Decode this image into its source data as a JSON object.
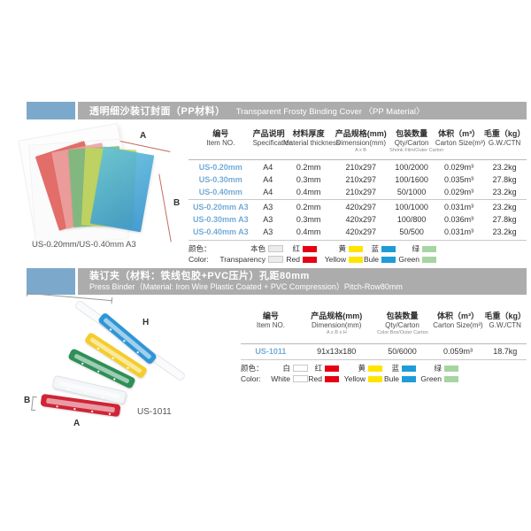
{
  "theme": {
    "tab_blue": "#7CA9CB",
    "bar_gray": "#ACACAC",
    "item_blue": "#74ABD8"
  },
  "section1": {
    "header": {
      "title_cn": "透明细沙装订封面（PP材料）",
      "title_en": "Transparent Frosty Binding Cover 〈PP Material〉"
    },
    "illustration": {
      "label_a": "A",
      "label_b": "B",
      "caption": "US-0.20mm/US-0.40mm A3"
    },
    "table": {
      "headers": [
        {
          "cn": "编号",
          "en": "Item NO.",
          "sub": ""
        },
        {
          "cn": "产品说明",
          "en": "Specification",
          "sub": ""
        },
        {
          "cn": "材料厚度",
          "en": "Material thickness",
          "sub": ""
        },
        {
          "cn": "产品规格(mm)",
          "en": "Dimension(mm)",
          "sub": "A x B"
        },
        {
          "cn": "包装数量",
          "en": "Qty/Carton",
          "sub": "Shrink Film/Outer Carton"
        },
        {
          "cn": "体积（m³）",
          "en": "Carton Size(m³)",
          "sub": ""
        },
        {
          "cn": "毛重（kg）",
          "en": "G.W./CTN",
          "sub": ""
        }
      ],
      "rows": [
        [
          "US-0.20mm",
          "A4",
          "0.2mm",
          "210x297",
          "100/2000",
          "0.029m³",
          "23.2kg"
        ],
        [
          "US-0.30mm",
          "A4",
          "0.3mm",
          "210x297",
          "100/1600",
          "0.035m³",
          "27.8kg"
        ],
        [
          "US-0.40mm",
          "A4",
          "0.4mm",
          "210x297",
          "50/1000",
          "0.029m³",
          "23.2kg"
        ],
        [
          "US-0.20mm A3",
          "A3",
          "0.2mm",
          "420x297",
          "100/1000",
          "0.031m³",
          "23.2kg"
        ],
        [
          "US-0.30mm A3",
          "A3",
          "0.3mm",
          "420x297",
          "100/800",
          "0.036m³",
          "27.8kg"
        ],
        [
          "US-0.40mm A3",
          "A3",
          "0.4mm",
          "420x297",
          "50/500",
          "0.031m³",
          "23.2kg"
        ]
      ]
    },
    "colors": {
      "label_cn": "颜色：",
      "label_en": "Color:",
      "items": [
        {
          "cn": "本色",
          "en": "Transparency",
          "hex": "#EBEBEB"
        },
        {
          "cn": "红",
          "en": "Red",
          "hex": "#E60012"
        },
        {
          "cn": "黄",
          "en": "Yellow",
          "hex": "#FFE400"
        },
        {
          "cn": "蓝",
          "en": "Bule",
          "hex": "#1E9CD7"
        },
        {
          "cn": "绿",
          "en": "Green",
          "hex": "#A6D5A2"
        }
      ]
    }
  },
  "section2": {
    "header": {
      "title_cn": "装订夹（材料：铁线包胶+PVC压片）孔距80mm",
      "title_en": "Press Binder（Material: Iron Wire Plastic Coated + PVC Compression）Pitch-Row80mm"
    },
    "illustration": {
      "label_a": "A",
      "label_b": "B",
      "label_h": "H",
      "caption": "US-1011"
    },
    "table": {
      "headers": [
        {
          "cn": "编号",
          "en": "Item NO.",
          "sub": ""
        },
        {
          "cn": "产品规格(mm)",
          "en": "Dimension(mm)",
          "sub": "A x B x H"
        },
        {
          "cn": "包装数量",
          "en": "Qty/Carton",
          "sub": "Color Box/Outer Carton"
        },
        {
          "cn": "体积（m³）",
          "en": "Carton Size(m³)",
          "sub": ""
        },
        {
          "cn": "毛重（kg）",
          "en": "G.W./CTN",
          "sub": ""
        }
      ],
      "rows": [
        [
          "US-1011",
          "91x13x180",
          "50/6000",
          "0.059m³",
          "18.7kg"
        ]
      ]
    },
    "colors": {
      "label_cn": "颜色：",
      "label_en": "Color:",
      "items": [
        {
          "cn": "白",
          "en": "White",
          "hex": "#FFFFFF"
        },
        {
          "cn": "红",
          "en": "Red",
          "hex": "#E60012"
        },
        {
          "cn": "黄",
          "en": "Yellow",
          "hex": "#FFE400"
        },
        {
          "cn": "蓝",
          "en": "Bule",
          "hex": "#1E9CD7"
        },
        {
          "cn": "绿",
          "en": "Green",
          "hex": "#A6D5A2"
        }
      ]
    }
  }
}
